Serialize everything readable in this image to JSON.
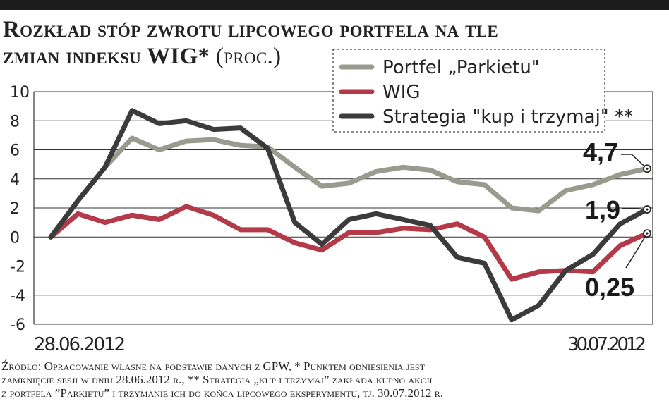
{
  "title_line1": "Rozkład stóp zwrotu lipcowego portfela na tle",
  "title_line2": "zmian indeksu WIG*",
  "title_unit": "(proc.)",
  "footnote": "Źródło: Opracowanie własne na podstawie danych z GPW, * Punktem odniesienia jest\nzamknięcie sesji w dniu 28.06.2012 r., ** Strategia „kup i trzymaj” zakłada kupno akcji\nz portfela ”Parkietu” i trzymanie ich do końca lipcowego eksperymentu, tj. 30.07.2012 r.",
  "chart_data": {
    "type": "line",
    "title": "Rozkład stóp zwrotu lipcowego portfela na tle zmian indeksu WIG* (proc.)",
    "xlabel": "",
    "ylabel": "",
    "ylim": [
      -6,
      10
    ],
    "yticks": [
      10,
      8,
      6,
      4,
      2,
      0,
      -2,
      -4,
      -6
    ],
    "x_start_label": "28.06.2012",
    "x_end_label": "30.07.2012",
    "grid": true,
    "legend_position": "top-right",
    "series": [
      {
        "name": "Portfel „Parkietu\"",
        "color": "#9a9b8e",
        "values": [
          0,
          2.5,
          4.8,
          6.8,
          6.0,
          6.6,
          6.7,
          6.3,
          6.2,
          4.8,
          3.5,
          3.7,
          4.5,
          4.8,
          4.6,
          3.8,
          3.6,
          2.0,
          1.8,
          3.2,
          3.6,
          4.3,
          4.7
        ],
        "end_label": "4,7"
      },
      {
        "name": "WIG",
        "color": "#b43a4a",
        "values": [
          0,
          1.6,
          1.0,
          1.5,
          1.2,
          2.1,
          1.5,
          0.5,
          0.5,
          -0.4,
          -0.9,
          0.3,
          0.3,
          0.6,
          0.5,
          0.9,
          0,
          -2.9,
          -2.4,
          -2.3,
          -2.4,
          -0.6,
          0.25
        ],
        "end_label": "0,25"
      },
      {
        "name": "Strategia \"kup i trzymaj\" **",
        "color": "#3b3b3b",
        "values": [
          0,
          2.5,
          4.8,
          8.7,
          7.8,
          8.0,
          7.4,
          7.5,
          6.1,
          1.0,
          -0.5,
          1.2,
          1.6,
          1.2,
          0.8,
          -1.4,
          -1.8,
          -5.7,
          -4.7,
          -2.3,
          -1.2,
          0.9,
          1.9
        ],
        "end_label": "1,9"
      }
    ]
  }
}
